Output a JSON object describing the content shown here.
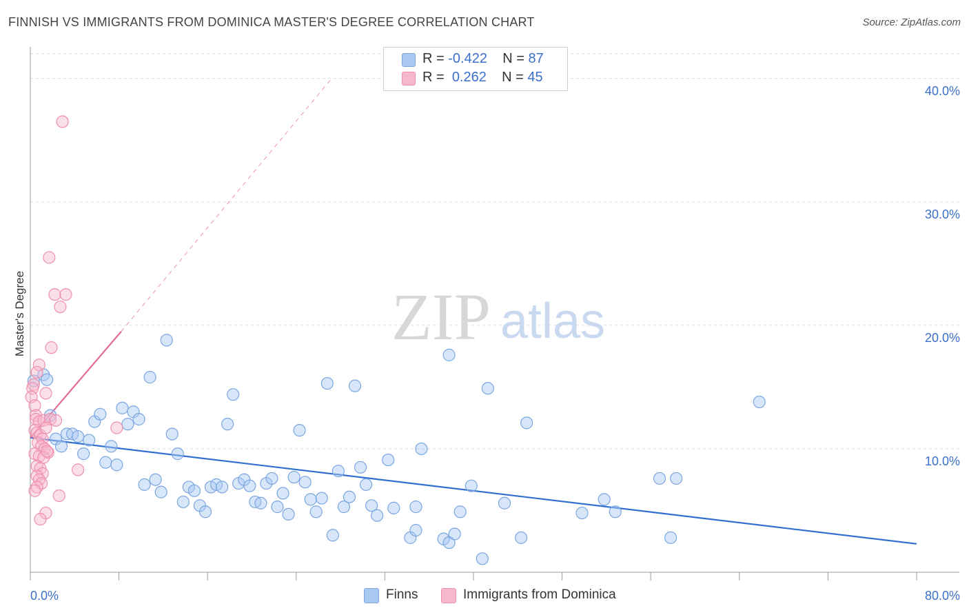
{
  "header": {
    "title": "FINNISH VS IMMIGRANTS FROM DOMINICA MASTER'S DEGREE CORRELATION CHART",
    "source": "Source: ZipAtlas.com"
  },
  "watermark": {
    "zip": "ZIP",
    "atlas": "atlas"
  },
  "legend": {
    "series1": {
      "r_label": "R = ",
      "r_value": "-0.422",
      "n_label": "N = ",
      "n_value": "87"
    },
    "series2": {
      "r_label": "R = ",
      "r_value": "0.262",
      "n_label": "N = ",
      "n_value": "45"
    }
  },
  "bottom_legend": {
    "series1": "Finns",
    "series2": "Immigrants from Dominica"
  },
  "colors": {
    "finns_fill": "#a9c8f2",
    "finns_stroke": "#7aa6e0",
    "finns_line": "#2e6fcf",
    "dominica_fill": "#f7b8cc",
    "dominica_stroke": "#ee8fae",
    "dominica_line": "#e36a93",
    "axis_text": "#3a6fcc",
    "grid": "#dddddd"
  },
  "chart_data": {
    "type": "scatter",
    "title": "FINNISH VS IMMIGRANTS FROM DOMINICA MASTER'S DEGREE CORRELATION CHART",
    "xlabel": "",
    "ylabel": "Master's Degree",
    "xlim": [
      0,
      80
    ],
    "ylim": [
      0,
      42
    ],
    "x_ticks": [
      "0.0%",
      "80.0%"
    ],
    "y_ticks": [
      {
        "value": 10,
        "label": "10.0%"
      },
      {
        "value": 20,
        "label": "20.0%"
      },
      {
        "value": 30,
        "label": "30.0%"
      },
      {
        "value": 40,
        "label": "40.0%"
      }
    ],
    "grid": true,
    "legend_position": "top-center",
    "series": [
      {
        "name": "Finns",
        "r": -0.422,
        "n": 87,
        "trend": {
          "x": [
            0,
            80
          ],
          "y": [
            10.9,
            2.3
          ]
        },
        "points": [
          [
            0.3,
            15.5
          ],
          [
            1.2,
            16.0
          ],
          [
            1.5,
            15.6
          ],
          [
            1.8,
            12.7
          ],
          [
            2.3,
            10.8
          ],
          [
            2.8,
            10.2
          ],
          [
            3.3,
            11.2
          ],
          [
            3.8,
            11.2
          ],
          [
            4.3,
            11.0
          ],
          [
            4.8,
            9.6
          ],
          [
            5.3,
            10.7
          ],
          [
            5.8,
            12.2
          ],
          [
            6.3,
            12.8
          ],
          [
            6.8,
            8.9
          ],
          [
            7.3,
            10.2
          ],
          [
            7.8,
            8.7
          ],
          [
            8.3,
            13.3
          ],
          [
            8.8,
            12.0
          ],
          [
            9.3,
            13.0
          ],
          [
            9.8,
            12.4
          ],
          [
            10.3,
            7.1
          ],
          [
            10.8,
            15.8
          ],
          [
            11.3,
            7.5
          ],
          [
            11.8,
            6.5
          ],
          [
            12.3,
            18.8
          ],
          [
            12.8,
            11.2
          ],
          [
            13.3,
            9.6
          ],
          [
            13.8,
            5.7
          ],
          [
            14.3,
            6.9
          ],
          [
            14.8,
            6.6
          ],
          [
            15.3,
            5.4
          ],
          [
            15.8,
            4.9
          ],
          [
            16.3,
            6.9
          ],
          [
            16.8,
            7.1
          ],
          [
            17.3,
            6.9
          ],
          [
            17.8,
            12.0
          ],
          [
            18.3,
            14.4
          ],
          [
            18.8,
            7.2
          ],
          [
            19.3,
            7.5
          ],
          [
            19.8,
            7.0
          ],
          [
            20.3,
            5.7
          ],
          [
            20.8,
            5.6
          ],
          [
            21.3,
            7.2
          ],
          [
            21.8,
            7.6
          ],
          [
            22.3,
            5.3
          ],
          [
            22.8,
            6.4
          ],
          [
            23.3,
            4.7
          ],
          [
            23.8,
            7.7
          ],
          [
            24.3,
            11.5
          ],
          [
            24.8,
            7.3
          ],
          [
            25.3,
            5.9
          ],
          [
            25.8,
            4.9
          ],
          [
            26.3,
            6.0
          ],
          [
            26.8,
            15.3
          ],
          [
            27.3,
            3.0
          ],
          [
            27.8,
            8.2
          ],
          [
            28.3,
            5.3
          ],
          [
            28.8,
            6.1
          ],
          [
            29.3,
            15.1
          ],
          [
            29.8,
            8.5
          ],
          [
            30.3,
            7.1
          ],
          [
            30.8,
            5.4
          ],
          [
            31.3,
            4.6
          ],
          [
            32.3,
            9.1
          ],
          [
            32.8,
            5.2
          ],
          [
            34.3,
            2.8
          ],
          [
            34.8,
            5.3
          ],
          [
            34.8,
            3.4
          ],
          [
            35.3,
            10.0
          ],
          [
            37.3,
            2.7
          ],
          [
            37.8,
            17.6
          ],
          [
            37.8,
            2.4
          ],
          [
            38.3,
            3.1
          ],
          [
            38.8,
            4.9
          ],
          [
            39.8,
            7.0
          ],
          [
            40.8,
            1.1
          ],
          [
            41.3,
            14.9
          ],
          [
            42.8,
            5.6
          ],
          [
            44.3,
            2.8
          ],
          [
            44.8,
            12.1
          ],
          [
            49.8,
            4.8
          ],
          [
            51.8,
            5.9
          ],
          [
            52.8,
            4.9
          ],
          [
            56.8,
            7.6
          ],
          [
            57.8,
            2.8
          ],
          [
            58.3,
            7.6
          ],
          [
            65.8,
            13.8
          ]
        ]
      },
      {
        "name": "Immigrants from Dominica",
        "r": 0.262,
        "n": 45,
        "trend": {
          "x": [
            0,
            8.2
          ],
          "y": [
            10.9,
            19.5
          ]
        },
        "trend_extended": {
          "x": [
            8.2,
            27.2
          ],
          "y": [
            19.5,
            40.0
          ]
        },
        "points": [
          [
            2.9,
            36.5
          ],
          [
            1.7,
            25.5
          ],
          [
            2.2,
            22.5
          ],
          [
            2.7,
            21.5
          ],
          [
            3.2,
            22.5
          ],
          [
            1.9,
            18.2
          ],
          [
            0.8,
            16.8
          ],
          [
            0.6,
            16.2
          ],
          [
            0.3,
            15.2
          ],
          [
            0.2,
            14.9
          ],
          [
            0.1,
            14.2
          ],
          [
            1.4,
            14.5
          ],
          [
            0.4,
            13.5
          ],
          [
            0.5,
            12.7
          ],
          [
            0.5,
            12.4
          ],
          [
            0.8,
            12.2
          ],
          [
            1.2,
            12.3
          ],
          [
            1.8,
            12.4
          ],
          [
            2.3,
            12.3
          ],
          [
            0.4,
            11.5
          ],
          [
            0.6,
            11.3
          ],
          [
            0.9,
            11.1
          ],
          [
            1.1,
            10.8
          ],
          [
            1.4,
            11.7
          ],
          [
            0.7,
            10.5
          ],
          [
            1.0,
            10.2
          ],
          [
            1.3,
            10.0
          ],
          [
            1.6,
            9.7
          ],
          [
            0.4,
            9.6
          ],
          [
            0.8,
            9.4
          ],
          [
            1.2,
            9.3
          ],
          [
            1.5,
            9.8
          ],
          [
            0.6,
            8.6
          ],
          [
            0.9,
            8.4
          ],
          [
            1.1,
            8.0
          ],
          [
            0.6,
            7.8
          ],
          [
            0.8,
            7.5
          ],
          [
            1.0,
            7.2
          ],
          [
            0.6,
            6.9
          ],
          [
            0.4,
            6.6
          ],
          [
            2.6,
            6.2
          ],
          [
            7.8,
            11.7
          ],
          [
            4.3,
            8.3
          ],
          [
            1.4,
            4.8
          ],
          [
            0.9,
            4.3
          ]
        ]
      }
    ]
  }
}
